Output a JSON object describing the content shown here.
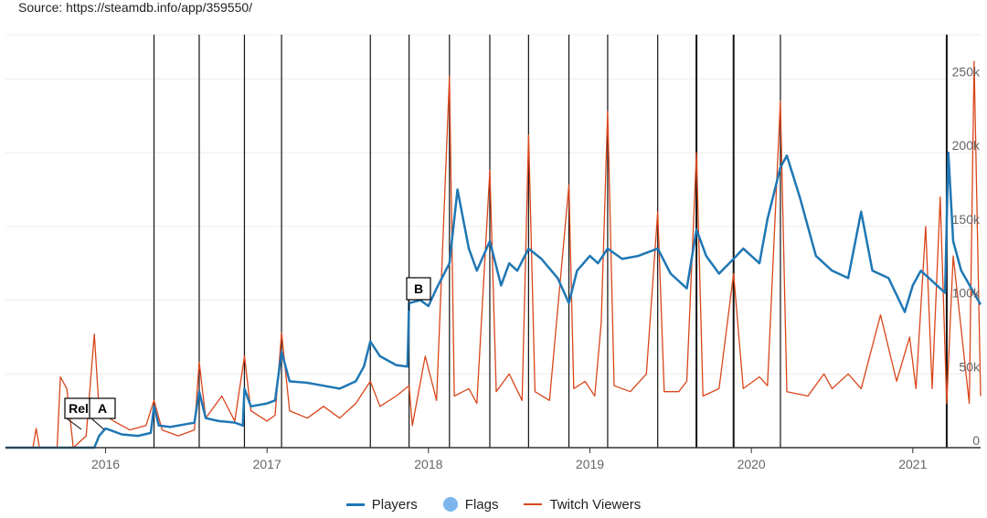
{
  "source_text": "Source: https://steamdb.info/app/359550/",
  "colors": {
    "players": "#1f77b4",
    "flags": "#7cb5ec",
    "twitch": "#d9451a",
    "grid": "#ececec",
    "flagline": "#111111"
  },
  "chart_data": {
    "type": "line",
    "x_range": [
      2015.38,
      2021.42
    ],
    "y_range": [
      0,
      280000
    ],
    "x_ticks": [
      {
        "value": 2016,
        "label": "2016"
      },
      {
        "value": 2017,
        "label": "2017"
      },
      {
        "value": 2018,
        "label": "2018"
      },
      {
        "value": 2019,
        "label": "2019"
      },
      {
        "value": 2020,
        "label": "2020"
      },
      {
        "value": 2021,
        "label": "2021"
      }
    ],
    "y_ticks": [
      {
        "value": 0,
        "label": "0"
      },
      {
        "value": 50000,
        "label": "50k"
      },
      {
        "value": 100000,
        "label": "100k"
      },
      {
        "value": 150000,
        "label": "150k"
      },
      {
        "value": 200000,
        "label": "200k"
      },
      {
        "value": 250000,
        "label": "250k"
      }
    ],
    "flags": [
      2016.3,
      2016.58,
      2016.86,
      2017.09,
      2017.64,
      2017.88,
      2018.13,
      2018.38,
      2018.62,
      2018.87,
      2019.11,
      2019.42,
      2019.66,
      2019.89,
      2020.18,
      2021.21
    ],
    "annotations": [
      {
        "label": "Rel",
        "x": 2015.85
      },
      {
        "label": "A",
        "x": 2015.99
      },
      {
        "label": "B",
        "x": 2017.88
      }
    ],
    "series": [
      {
        "name": "Players",
        "points": [
          [
            2015.38,
            0
          ],
          [
            2015.8,
            0
          ],
          [
            2015.93,
            0
          ],
          [
            2015.96,
            8000
          ],
          [
            2016.0,
            13000
          ],
          [
            2016.05,
            11000
          ],
          [
            2016.1,
            9000
          ],
          [
            2016.2,
            8000
          ],
          [
            2016.28,
            10000
          ],
          [
            2016.3,
            28000
          ],
          [
            2016.33,
            15000
          ],
          [
            2016.4,
            14000
          ],
          [
            2016.5,
            16000
          ],
          [
            2016.55,
            17000
          ],
          [
            2016.58,
            38000
          ],
          [
            2016.62,
            20000
          ],
          [
            2016.7,
            18000
          ],
          [
            2016.8,
            17000
          ],
          [
            2016.85,
            15000
          ],
          [
            2016.86,
            40000
          ],
          [
            2016.9,
            28000
          ],
          [
            2017.0,
            30000
          ],
          [
            2017.05,
            32000
          ],
          [
            2017.09,
            65000
          ],
          [
            2017.14,
            45000
          ],
          [
            2017.25,
            44000
          ],
          [
            2017.35,
            42000
          ],
          [
            2017.45,
            40000
          ],
          [
            2017.55,
            45000
          ],
          [
            2017.6,
            55000
          ],
          [
            2017.64,
            72000
          ],
          [
            2017.7,
            62000
          ],
          [
            2017.8,
            56000
          ],
          [
            2017.87,
            55000
          ],
          [
            2017.88,
            98000
          ],
          [
            2017.95,
            100000
          ],
          [
            2018.0,
            96000
          ],
          [
            2018.05,
            108000
          ],
          [
            2018.13,
            125000
          ],
          [
            2018.18,
            175000
          ],
          [
            2018.25,
            135000
          ],
          [
            2018.3,
            120000
          ],
          [
            2018.38,
            140000
          ],
          [
            2018.45,
            110000
          ],
          [
            2018.5,
            125000
          ],
          [
            2018.55,
            120000
          ],
          [
            2018.62,
            135000
          ],
          [
            2018.7,
            128000
          ],
          [
            2018.8,
            115000
          ],
          [
            2018.87,
            98000
          ],
          [
            2018.92,
            120000
          ],
          [
            2019.0,
            130000
          ],
          [
            2019.05,
            125000
          ],
          [
            2019.11,
            135000
          ],
          [
            2019.2,
            128000
          ],
          [
            2019.3,
            130000
          ],
          [
            2019.42,
            135000
          ],
          [
            2019.5,
            118000
          ],
          [
            2019.6,
            108000
          ],
          [
            2019.66,
            148000
          ],
          [
            2019.72,
            130000
          ],
          [
            2019.8,
            118000
          ],
          [
            2019.89,
            128000
          ],
          [
            2019.95,
            135000
          ],
          [
            2020.05,
            125000
          ],
          [
            2020.1,
            155000
          ],
          [
            2020.18,
            190000
          ],
          [
            2020.22,
            198000
          ],
          [
            2020.3,
            170000
          ],
          [
            2020.4,
            130000
          ],
          [
            2020.5,
            120000
          ],
          [
            2020.6,
            115000
          ],
          [
            2020.68,
            160000
          ],
          [
            2020.75,
            120000
          ],
          [
            2020.85,
            115000
          ],
          [
            2020.95,
            92000
          ],
          [
            2021.0,
            110000
          ],
          [
            2021.05,
            120000
          ],
          [
            2021.15,
            110000
          ],
          [
            2021.2,
            105000
          ],
          [
            2021.22,
            200000
          ],
          [
            2021.25,
            140000
          ],
          [
            2021.3,
            120000
          ],
          [
            2021.42,
            97000
          ]
        ]
      },
      {
        "name": "Flags",
        "points": []
      },
      {
        "name": "Twitch Viewers",
        "points": [
          [
            2015.38,
            0
          ],
          [
            2015.55,
            0
          ],
          [
            2015.57,
            13000
          ],
          [
            2015.59,
            0
          ],
          [
            2015.7,
            0
          ],
          [
            2015.72,
            48000
          ],
          [
            2015.76,
            40000
          ],
          [
            2015.8,
            0
          ],
          [
            2015.88,
            8000
          ],
          [
            2015.93,
            77000
          ],
          [
            2015.96,
            25000
          ],
          [
            2016.05,
            18000
          ],
          [
            2016.15,
            12000
          ],
          [
            2016.25,
            15000
          ],
          [
            2016.3,
            32000
          ],
          [
            2016.35,
            12000
          ],
          [
            2016.45,
            8000
          ],
          [
            2016.55,
            12000
          ],
          [
            2016.58,
            58000
          ],
          [
            2016.62,
            20000
          ],
          [
            2016.72,
            35000
          ],
          [
            2016.8,
            18000
          ],
          [
            2016.86,
            62000
          ],
          [
            2016.9,
            25000
          ],
          [
            2017.0,
            18000
          ],
          [
            2017.05,
            22000
          ],
          [
            2017.09,
            78000
          ],
          [
            2017.14,
            25000
          ],
          [
            2017.25,
            20000
          ],
          [
            2017.35,
            28000
          ],
          [
            2017.45,
            20000
          ],
          [
            2017.55,
            30000
          ],
          [
            2017.64,
            45000
          ],
          [
            2017.7,
            28000
          ],
          [
            2017.8,
            35000
          ],
          [
            2017.88,
            42000
          ],
          [
            2017.9,
            15000
          ],
          [
            2017.98,
            62000
          ],
          [
            2018.05,
            32000
          ],
          [
            2018.13,
            252000
          ],
          [
            2018.16,
            35000
          ],
          [
            2018.25,
            40000
          ],
          [
            2018.3,
            30000
          ],
          [
            2018.38,
            188000
          ],
          [
            2018.42,
            38000
          ],
          [
            2018.5,
            50000
          ],
          [
            2018.58,
            32000
          ],
          [
            2018.62,
            212000
          ],
          [
            2018.66,
            38000
          ],
          [
            2018.75,
            32000
          ],
          [
            2018.87,
            178000
          ],
          [
            2018.9,
            40000
          ],
          [
            2018.97,
            45000
          ],
          [
            2019.03,
            35000
          ],
          [
            2019.07,
            85000
          ],
          [
            2019.11,
            228000
          ],
          [
            2019.15,
            42000
          ],
          [
            2019.25,
            38000
          ],
          [
            2019.35,
            50000
          ],
          [
            2019.42,
            160000
          ],
          [
            2019.46,
            38000
          ],
          [
            2019.55,
            38000
          ],
          [
            2019.6,
            45000
          ],
          [
            2019.66,
            200000
          ],
          [
            2019.7,
            35000
          ],
          [
            2019.8,
            40000
          ],
          [
            2019.89,
            118000
          ],
          [
            2019.95,
            40000
          ],
          [
            2020.05,
            48000
          ],
          [
            2020.1,
            42000
          ],
          [
            2020.18,
            235000
          ],
          [
            2020.22,
            38000
          ],
          [
            2020.35,
            35000
          ],
          [
            2020.45,
            50000
          ],
          [
            2020.5,
            40000
          ],
          [
            2020.6,
            50000
          ],
          [
            2020.68,
            40000
          ],
          [
            2020.8,
            90000
          ],
          [
            2020.9,
            45000
          ],
          [
            2020.98,
            75000
          ],
          [
            2021.02,
            40000
          ],
          [
            2021.08,
            150000
          ],
          [
            2021.12,
            40000
          ],
          [
            2021.17,
            170000
          ],
          [
            2021.21,
            30000
          ],
          [
            2021.25,
            130000
          ],
          [
            2021.3,
            80000
          ],
          [
            2021.35,
            30000
          ],
          [
            2021.38,
            262000
          ],
          [
            2021.42,
            35000
          ]
        ]
      }
    ]
  }
}
